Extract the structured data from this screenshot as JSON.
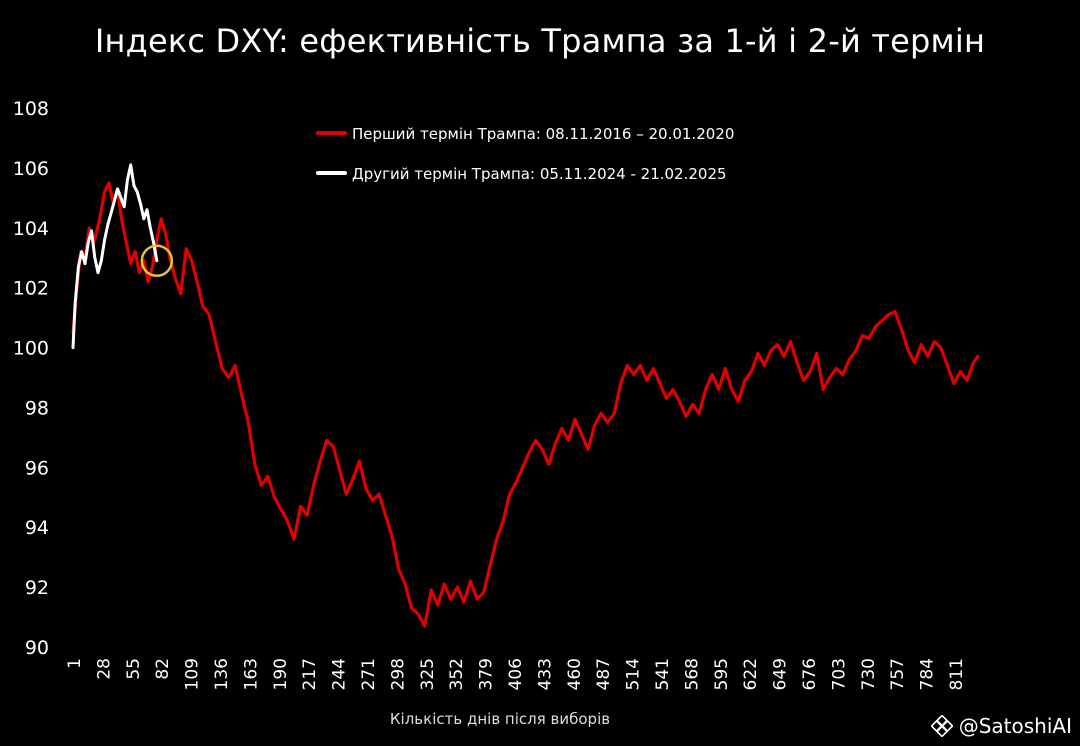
{
  "title": "Індекс DXY: ефективність Трампа за 1-й і 2-й термін",
  "watermark": "@SatoshiAI",
  "colors": {
    "background": "#000000",
    "first_term": "#e00000",
    "second_term": "#ffffff",
    "highlight_circle": "#e8c33a"
  },
  "chart_data": {
    "type": "line",
    "title": "Індекс DXY: ефективність Трампа за 1-й і 2-й термін",
    "xlabel": "Кількість днів після виборів",
    "ylabel": "",
    "xlim": [
      1,
      845
    ],
    "ylim": [
      90,
      108
    ],
    "xticks": [
      1,
      28,
      55,
      82,
      109,
      136,
      163,
      190,
      217,
      244,
      271,
      298,
      325,
      352,
      379,
      406,
      433,
      460,
      487,
      514,
      541,
      568,
      595,
      622,
      649,
      676,
      703,
      730,
      757,
      784,
      811
    ],
    "yticks": [
      90,
      92,
      94,
      96,
      98,
      100,
      102,
      104,
      106,
      108
    ],
    "grid": false,
    "legend_position": "top",
    "series": [
      {
        "name": "Перший термін Трампа: 08.11.2016 – 20.01.2020",
        "color": "#e00000",
        "x": [
          1,
          4,
          8,
          12,
          16,
          20,
          25,
          30,
          34,
          38,
          42,
          46,
          50,
          54,
          58,
          62,
          66,
          70,
          74,
          78,
          82,
          86,
          90,
          95,
          100,
          105,
          110,
          115,
          120,
          126,
          132,
          138,
          144,
          150,
          156,
          162,
          168,
          174,
          180,
          186,
          192,
          198,
          204,
          210,
          216,
          222,
          228,
          234,
          240,
          246,
          252,
          258,
          264,
          270,
          276,
          282,
          288,
          294,
          300,
          306,
          312,
          318,
          324,
          330,
          336,
          342,
          348,
          354,
          360,
          366,
          372,
          378,
          384,
          390,
          396,
          402,
          408,
          414,
          420,
          426,
          432,
          438,
          444,
          450,
          456,
          462,
          468,
          474,
          480,
          486,
          492,
          498,
          504,
          510,
          516,
          522,
          528,
          534,
          540,
          546,
          552,
          558,
          564,
          570,
          576,
          582,
          588,
          594,
          600,
          606,
          612,
          618,
          624,
          630,
          636,
          642,
          648,
          654,
          660,
          666,
          672,
          678,
          684,
          690,
          696,
          702,
          708,
          714,
          720,
          726,
          732,
          738,
          744,
          750,
          756,
          762,
          768,
          774,
          780,
          786,
          792,
          798,
          804,
          810,
          816,
          822,
          828,
          832
        ],
        "y": [
          100.5,
          101.8,
          103.2,
          103.0,
          104.0,
          103.5,
          104.2,
          105.2,
          105.5,
          104.8,
          105.3,
          104.2,
          103.5,
          102.8,
          103.2,
          102.5,
          102.9,
          102.2,
          102.7,
          103.6,
          104.3,
          103.8,
          103.0,
          102.3,
          101.8,
          103.3,
          102.9,
          102.2,
          101.4,
          101.1,
          100.2,
          99.3,
          99.0,
          99.4,
          98.4,
          97.5,
          96.1,
          95.4,
          95.7,
          95.0,
          94.6,
          94.2,
          93.6,
          94.7,
          94.4,
          95.4,
          96.2,
          96.9,
          96.7,
          95.9,
          95.1,
          95.6,
          96.2,
          95.3,
          94.9,
          95.1,
          94.4,
          93.7,
          92.6,
          92.1,
          91.3,
          91.1,
          90.7,
          91.9,
          91.4,
          92.1,
          91.6,
          92.0,
          91.5,
          92.2,
          91.6,
          91.8,
          92.7,
          93.6,
          94.2,
          95.1,
          95.5,
          96.0,
          96.5,
          96.9,
          96.6,
          96.1,
          96.8,
          97.3,
          96.9,
          97.6,
          97.1,
          96.6,
          97.4,
          97.8,
          97.5,
          97.8,
          98.8,
          99.4,
          99.1,
          99.4,
          98.9,
          99.3,
          98.8,
          98.3,
          98.6,
          98.2,
          97.7,
          98.1,
          97.8,
          98.6,
          99.1,
          98.6,
          99.3,
          98.6,
          98.2,
          98.9,
          99.2,
          99.8,
          99.4,
          99.9,
          100.1,
          99.7,
          100.2,
          99.5,
          98.9,
          99.2,
          99.8,
          98.6,
          99.0,
          99.3,
          99.1,
          99.6,
          99.9,
          100.4,
          100.3,
          100.7,
          100.9,
          101.1,
          101.2,
          100.6,
          99.9,
          99.5,
          100.1,
          99.7,
          100.2,
          100.0,
          99.4,
          98.8,
          99.2,
          98.9,
          99.5,
          99.7
        ]
      },
      {
        "name": "Другий термін Трампа: 05.11.2024 - 21.02.2025",
        "color": "#ffffff",
        "x": [
          1,
          3,
          6,
          9,
          12,
          15,
          18,
          21,
          24,
          27,
          30,
          33,
          36,
          39,
          42,
          45,
          48,
          51,
          54,
          57,
          60,
          63,
          66,
          69,
          72,
          75,
          78
        ],
        "y": [
          100.0,
          101.5,
          102.7,
          103.2,
          102.8,
          103.5,
          103.9,
          103.0,
          102.5,
          102.9,
          103.6,
          104.1,
          104.5,
          104.9,
          105.3,
          105.0,
          104.7,
          105.6,
          106.1,
          105.4,
          105.2,
          104.8,
          104.3,
          104.6,
          104.0,
          103.5,
          102.9
        ]
      }
    ],
    "annotations": [
      {
        "type": "circle",
        "x": 78,
        "y": 102.9,
        "color": "#e8c33a"
      }
    ]
  }
}
